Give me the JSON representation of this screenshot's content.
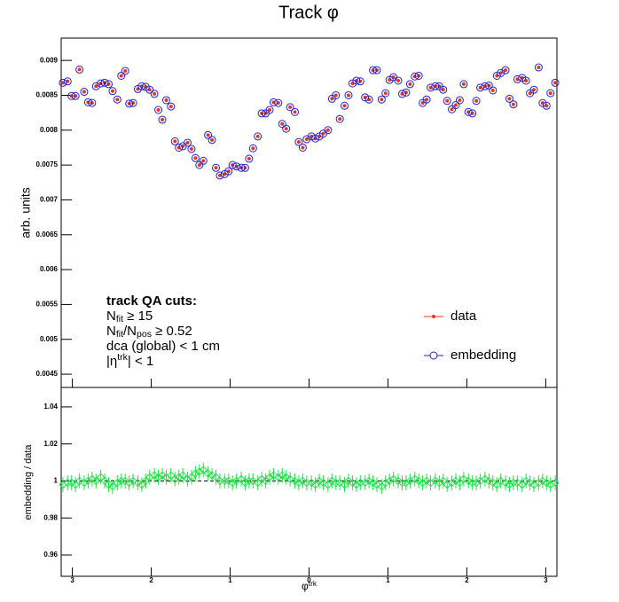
{
  "chart_data": [
    {
      "type": "scatter",
      "title": "Track φ",
      "ylabel": "arb. units",
      "x": [
        -3.12,
        -3.06,
        -3.01,
        -2.96,
        -2.91,
        -2.85,
        -2.8,
        -2.75,
        -2.7,
        -2.64,
        -2.59,
        -2.54,
        -2.49,
        -2.43,
        -2.38,
        -2.33,
        -2.28,
        -2.23,
        -2.17,
        -2.12,
        -2.07,
        -2.02,
        -1.96,
        -1.91,
        -1.86,
        -1.81,
        -1.75,
        -1.7,
        -1.65,
        -1.6,
        -1.54,
        -1.49,
        -1.44,
        -1.39,
        -1.34,
        -1.28,
        -1.23,
        -1.18,
        -1.13,
        -1.07,
        -1.02,
        -0.97,
        -0.92,
        -0.86,
        -0.81,
        -0.76,
        -0.71,
        -0.65,
        -0.6,
        -0.55,
        -0.5,
        -0.45,
        -0.39,
        -0.34,
        -0.29,
        -0.24,
        -0.18,
        -0.13,
        -0.08,
        -0.03,
        0.03,
        0.08,
        0.13,
        0.18,
        0.24,
        0.29,
        0.34,
        0.39,
        0.45,
        0.5,
        0.55,
        0.6,
        0.65,
        0.71,
        0.76,
        0.81,
        0.86,
        0.92,
        0.97,
        1.02,
        1.07,
        1.13,
        1.18,
        1.23,
        1.28,
        1.34,
        1.39,
        1.44,
        1.49,
        1.54,
        1.6,
        1.65,
        1.7,
        1.75,
        1.81,
        1.86,
        1.91,
        1.96,
        2.02,
        2.07,
        2.12,
        2.17,
        2.23,
        2.28,
        2.33,
        2.38,
        2.43,
        2.49,
        2.54,
        2.59,
        2.64,
        2.7,
        2.75,
        2.8,
        2.85,
        2.91,
        2.96,
        3.01,
        3.06,
        3.12
      ],
      "series": [
        {
          "name": "data",
          "color": "#e8341c",
          "marker": "dot",
          "values": [
            0.00868,
            0.0087,
            0.00849,
            0.00849,
            0.00887,
            0.00855,
            0.0084,
            0.00839,
            0.00863,
            0.00867,
            0.00868,
            0.00866,
            0.00856,
            0.00844,
            0.00878,
            0.00885,
            0.00838,
            0.00839,
            0.00859,
            0.00863,
            0.00862,
            0.00858,
            0.00852,
            0.00829,
            0.00815,
            0.00843,
            0.00834,
            0.00784,
            0.00775,
            0.00777,
            0.00782,
            0.00773,
            0.0076,
            0.0075,
            0.00756,
            0.00793,
            0.00786,
            0.00746,
            0.00735,
            0.00737,
            0.00741,
            0.0075,
            0.00748,
            0.00746,
            0.00746,
            0.00759,
            0.00774,
            0.00791,
            0.00824,
            0.00824,
            0.00829,
            0.0084,
            0.00839,
            0.00809,
            0.00802,
            0.00833,
            0.00826,
            0.00783,
            0.00775,
            0.00787,
            0.00791,
            0.00788,
            0.00791,
            0.00795,
            0.008,
            0.00845,
            0.0085,
            0.00816,
            0.00835,
            0.0085,
            0.00867,
            0.00871,
            0.0087,
            0.00847,
            0.00844,
            0.00886,
            0.00886,
            0.00844,
            0.00853,
            0.00872,
            0.00876,
            0.00871,
            0.00852,
            0.00854,
            0.00866,
            0.00877,
            0.00878,
            0.00839,
            0.00844,
            0.00861,
            0.00863,
            0.00863,
            0.00858,
            0.00842,
            0.0083,
            0.00836,
            0.00843,
            0.00866,
            0.00826,
            0.00824,
            0.00842,
            0.00861,
            0.00863,
            0.00864,
            0.00857,
            0.00878,
            0.00882,
            0.00886,
            0.00845,
            0.00837,
            0.00873,
            0.00875,
            0.00871,
            0.00853,
            0.00858,
            0.0089,
            0.00839,
            0.00835,
            0.00853,
            0.00868
          ]
        },
        {
          "name": "embedding",
          "color": "#2020d0",
          "marker": "open-circle",
          "values": [
            0.00868,
            0.0087,
            0.00849,
            0.00849,
            0.00887,
            0.00855,
            0.0084,
            0.00839,
            0.00863,
            0.00867,
            0.00868,
            0.00866,
            0.00856,
            0.00844,
            0.00878,
            0.00885,
            0.00838,
            0.00839,
            0.00859,
            0.00863,
            0.00862,
            0.00858,
            0.00852,
            0.00829,
            0.00815,
            0.00843,
            0.00834,
            0.00784,
            0.00775,
            0.00777,
            0.00782,
            0.00773,
            0.0076,
            0.0075,
            0.00756,
            0.00793,
            0.00786,
            0.00746,
            0.00735,
            0.00737,
            0.00741,
            0.0075,
            0.00748,
            0.00746,
            0.00746,
            0.00759,
            0.00774,
            0.00791,
            0.00824,
            0.00824,
            0.00829,
            0.0084,
            0.00839,
            0.00809,
            0.00802,
            0.00833,
            0.00826,
            0.00783,
            0.00775,
            0.00787,
            0.00791,
            0.00788,
            0.00791,
            0.00795,
            0.008,
            0.00845,
            0.0085,
            0.00816,
            0.00835,
            0.0085,
            0.00867,
            0.00871,
            0.0087,
            0.00847,
            0.00844,
            0.00886,
            0.00886,
            0.00844,
            0.00853,
            0.00872,
            0.00876,
            0.00871,
            0.00852,
            0.00854,
            0.00866,
            0.00877,
            0.00878,
            0.00839,
            0.00844,
            0.00861,
            0.00863,
            0.00863,
            0.00858,
            0.00842,
            0.0083,
            0.00836,
            0.00843,
            0.00866,
            0.00826,
            0.00824,
            0.00842,
            0.00861,
            0.00863,
            0.00864,
            0.00857,
            0.00878,
            0.00882,
            0.00886,
            0.00845,
            0.00837,
            0.00873,
            0.00875,
            0.00871,
            0.00853,
            0.00858,
            0.0089,
            0.00839,
            0.00835,
            0.00853,
            0.00868
          ]
        }
      ],
      "ylim": [
        0.00431,
        0.00932
      ],
      "yticks": [
        0.0045,
        0.005,
        0.0055,
        0.006,
        0.0065,
        0.007,
        0.0075,
        0.008,
        0.0085,
        0.009
      ],
      "legend": "lower right",
      "annotation": {
        "heading": "track QA cuts:",
        "lines": [
          [
            {
              "t": "N"
            },
            {
              "sub": "fit"
            },
            {
              "t": " ≥ 15"
            }
          ],
          [
            {
              "t": "N"
            },
            {
              "sub": "fit"
            },
            {
              "t": "/N"
            },
            {
              "sub": "pos"
            },
            {
              "t": " ≥ 0.52"
            }
          ],
          [
            {
              "t": "dca (global) < 1 cm"
            }
          ],
          [
            {
              "t": "|η"
            },
            {
              "sup": "trk"
            },
            {
              "t": "| < 1"
            }
          ]
        ]
      }
    },
    {
      "type": "scatter",
      "ylabel": "embedding / data",
      "xlabel": [
        {
          "t": "φ"
        },
        {
          "sup": "trk"
        }
      ],
      "x": [
        -3.12,
        -3.06,
        -3.01,
        -2.96,
        -2.91,
        -2.85,
        -2.8,
        -2.75,
        -2.7,
        -2.64,
        -2.59,
        -2.54,
        -2.49,
        -2.43,
        -2.38,
        -2.33,
        -2.28,
        -2.23,
        -2.17,
        -2.12,
        -2.07,
        -2.02,
        -1.96,
        -1.91,
        -1.86,
        -1.81,
        -1.75,
        -1.7,
        -1.65,
        -1.6,
        -1.54,
        -1.49,
        -1.44,
        -1.39,
        -1.34,
        -1.28,
        -1.23,
        -1.18,
        -1.13,
        -1.07,
        -1.02,
        -0.97,
        -0.92,
        -0.86,
        -0.81,
        -0.76,
        -0.71,
        -0.65,
        -0.6,
        -0.55,
        -0.5,
        -0.45,
        -0.39,
        -0.34,
        -0.29,
        -0.24,
        -0.18,
        -0.13,
        -0.08,
        -0.03,
        0.03,
        0.08,
        0.13,
        0.18,
        0.24,
        0.29,
        0.34,
        0.39,
        0.45,
        0.5,
        0.55,
        0.6,
        0.65,
        0.71,
        0.76,
        0.81,
        0.86,
        0.92,
        0.97,
        1.02,
        1.07,
        1.13,
        1.18,
        1.23,
        1.28,
        1.34,
        1.39,
        1.44,
        1.49,
        1.54,
        1.6,
        1.65,
        1.7,
        1.75,
        1.81,
        1.86,
        1.91,
        1.96,
        2.02,
        2.07,
        2.12,
        2.17,
        2.23,
        2.28,
        2.33,
        2.38,
        2.43,
        2.49,
        2.54,
        2.59,
        2.64,
        2.7,
        2.75,
        2.8,
        2.85,
        2.91,
        2.96,
        3.01,
        3.06,
        3.12
      ],
      "series": [
        {
          "color": "#22e04a",
          "marker": "open-diamond",
          "error": 0.004,
          "values": [
            0.998,
            0.999,
            0.999,
            0.998,
            1.0,
            0.999,
            1.0,
            1.001,
            1.0,
            1.002,
            1.0,
            0.998,
            0.997,
            0.999,
            1.0,
            1.0,
            0.999,
            1.0,
            0.999,
            0.998,
            1.0,
            1.002,
            1.003,
            1.002,
            1.003,
            1.002,
            1.003,
            1.001,
            1.002,
            1.003,
            1.001,
            1.002,
            1.004,
            1.005,
            1.006,
            1.004,
            1.003,
            1.002,
            1.0,
            1.0,
            1.0,
            0.999,
            1.0,
            1.001,
            0.999,
            1.0,
            1.0,
            0.999,
            1.001,
            1.0,
            1.002,
            1.003,
            1.002,
            1.003,
            1.002,
            1.001,
            1.0,
            0.999,
            1.0,
            0.999,
            0.999,
            0.998,
            1.0,
            0.999,
            0.998,
            1.0,
            0.999,
            0.999,
            0.998,
            1.0,
            0.999,
            0.998,
            0.999,
            0.999,
            1.0,
            0.999,
            0.998,
            0.997,
            0.999,
            1.0,
            1.001,
            1.0,
            0.999,
            0.999,
            1.0,
            1.001,
            1.0,
            0.999,
            1.0,
            0.999,
            1.0,
            0.999,
            1.0,
            0.998,
            0.999,
            1.0,
            0.999,
            1.001,
            1.0,
            0.999,
            0.999,
            1.0,
            1.001,
            1.0,
            0.999,
            0.998,
            1.0,
            0.999,
            0.998,
            0.999,
            0.999,
            0.998,
            1.0,
            0.999,
            0.998,
            0.999,
            1.0,
            0.999,
            0.998,
            0.999
          ]
        }
      ],
      "reference_line": 1,
      "xlim": [
        -3.1416,
        3.1416
      ],
      "xticks": [
        {
          "value": -3,
          "label": "3"
        },
        {
          "value": -2,
          "label": "2"
        },
        {
          "value": -1,
          "label": "1"
        },
        0,
        1,
        2,
        3
      ],
      "ylim": [
        0.9485,
        1.0505
      ],
      "yticks": [
        0.96,
        0.98,
        1,
        1.02,
        1.04
      ]
    }
  ]
}
